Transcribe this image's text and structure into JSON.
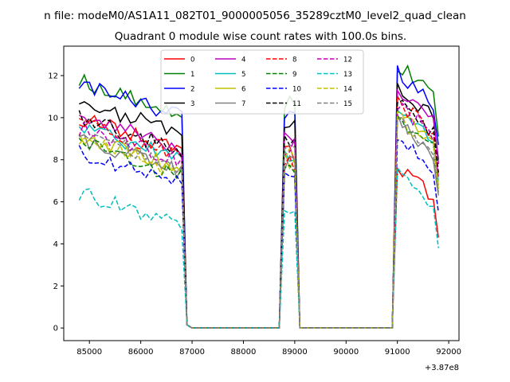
{
  "chart_data": {
    "type": "line",
    "suptitle": "n file: modeM0/AS1A11_082T01_9000005056_35289cztM0_level2_quad_clean",
    "title": "Quadrant 0 module wise count rates with 100.0s bins.",
    "xlabel": "",
    "ylabel": "",
    "offset_label": "+3.87e8",
    "xlim": [
      84500,
      92200
    ],
    "ylim": [
      -0.6,
      13.4
    ],
    "xticks": [
      85000,
      86000,
      87000,
      88000,
      89000,
      90000,
      91000,
      92000
    ],
    "xtick_labels": [
      "85000",
      "86000",
      "87000",
      "88000",
      "89000",
      "90000",
      "91000",
      "92000"
    ],
    "yticks": [
      0,
      2,
      4,
      6,
      8,
      10,
      12
    ],
    "ytick_labels": [
      "0",
      "2",
      "4",
      "6",
      "8",
      "10",
      "12"
    ],
    "grid": false,
    "legend_position": "top-center",
    "legend_columns": 4,
    "segments": [
      {
        "start": 84800,
        "end": 86800
      },
      {
        "start": 88800,
        "end": 89000
      },
      {
        "start": 91000,
        "end": 91800
      }
    ],
    "series": [
      {
        "name": "0",
        "color": "#ff0000",
        "dash": "solid",
        "levels": [
          10.0,
          8.3,
          7.8
        ]
      },
      {
        "name": "1",
        "color": "#008000",
        "dash": "solid",
        "levels": [
          11.8,
          10.8,
          12.6
        ]
      },
      {
        "name": "2",
        "color": "#0000ff",
        "dash": "solid",
        "levels": [
          11.6,
          10.2,
          12.2
        ]
      },
      {
        "name": "3",
        "color": "#000000",
        "dash": "solid",
        "levels": [
          10.8,
          9.6,
          11.5
        ]
      },
      {
        "name": "4",
        "color": "#bf00bf",
        "dash": "solid",
        "levels": [
          10.2,
          9.2,
          11.3
        ]
      },
      {
        "name": "5",
        "color": "#00bfbf",
        "dash": "solid",
        "levels": [
          9.6,
          8.2,
          10.5
        ]
      },
      {
        "name": "6",
        "color": "#bfbf00",
        "dash": "solid",
        "levels": [
          9.2,
          8.0,
          10.3
        ]
      },
      {
        "name": "7",
        "color": "#808080",
        "dash": "solid",
        "levels": [
          9.0,
          7.8,
          9.8
        ]
      },
      {
        "name": "8",
        "color": "#ff0000",
        "dash": "dashed",
        "levels": [
          9.8,
          7.9,
          10.8
        ]
      },
      {
        "name": "9",
        "color": "#008000",
        "dash": "dashed",
        "levels": [
          8.8,
          7.6,
          10.0
        ]
      },
      {
        "name": "10",
        "color": "#0000ff",
        "dash": "dashed",
        "levels": [
          8.4,
          7.2,
          9.0
        ]
      },
      {
        "name": "11",
        "color": "#000000",
        "dash": "dashed",
        "levels": [
          10.0,
          8.8,
          10.9
        ]
      },
      {
        "name": "12",
        "color": "#bf00bf",
        "dash": "dashed",
        "levels": [
          9.5,
          8.6,
          10.7
        ]
      },
      {
        "name": "13",
        "color": "#00bfbf",
        "dash": "dashed",
        "levels": [
          6.4,
          5.8,
          7.3
        ]
      },
      {
        "name": "14",
        "color": "#bfbf00",
        "dash": "dashed",
        "levels": [
          9.0,
          8.1,
          10.1
        ]
      },
      {
        "name": "15",
        "color": "#808080",
        "dash": "dashed",
        "levels": [
          9.3,
          8.4,
          9.9
        ]
      }
    ]
  }
}
